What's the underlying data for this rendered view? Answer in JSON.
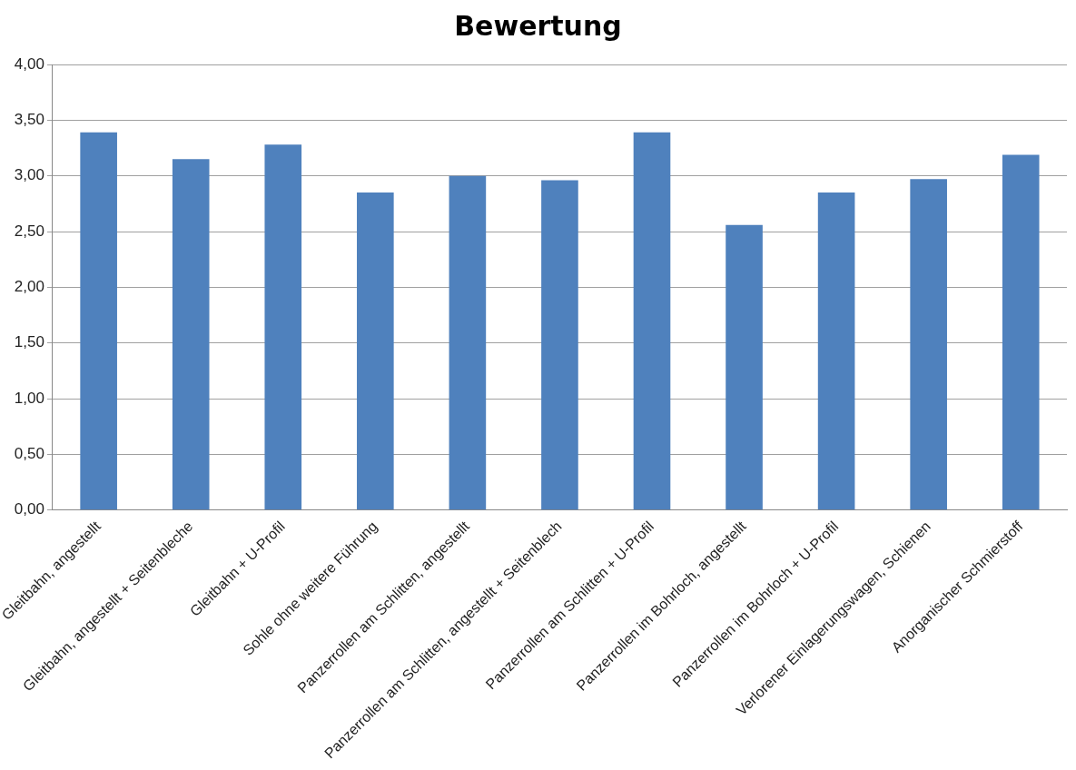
{
  "chart_data": {
    "type": "bar",
    "title": "Bewertung",
    "categories": [
      "Gleitbahn, angestellt",
      "Gleitbahn, angestellt + Seitenbleche",
      "Gleitbahn + U-Profil",
      "Sohle ohne weitere Führung",
      "Panzerrollen am Schlitten, angestellt",
      "Panzerrollen am Schlitten, angestellt + Seitenblech",
      "Panzerrollen am Schlitten + U-Profil",
      "Panzerrollen im Bohrloch, angestellt",
      "Panzerrollen im Bohrloch + U-Profil",
      "Verlorener Einlagerungswagen, Schienen",
      "Anorganischer Schmierstoff"
    ],
    "values": [
      3.39,
      3.15,
      3.28,
      2.85,
      3.0,
      2.96,
      3.39,
      2.56,
      2.85,
      2.97,
      3.19
    ],
    "color": "#4f81bd",
    "ylim": [
      0,
      4
    ],
    "yticks": [
      {
        "value": 0,
        "label": "0,00"
      },
      {
        "value": 0.5,
        "label": "0,50"
      },
      {
        "value": 1,
        "label": "1,00"
      },
      {
        "value": 1.5,
        "label": "1,50"
      },
      {
        "value": 2,
        "label": "2,00"
      },
      {
        "value": 2.5,
        "label": "2,50"
      },
      {
        "value": 3,
        "label": "3,00"
      },
      {
        "value": 3.5,
        "label": "3,50"
      },
      {
        "value": 4,
        "label": "4,00"
      }
    ],
    "grid": "y"
  }
}
